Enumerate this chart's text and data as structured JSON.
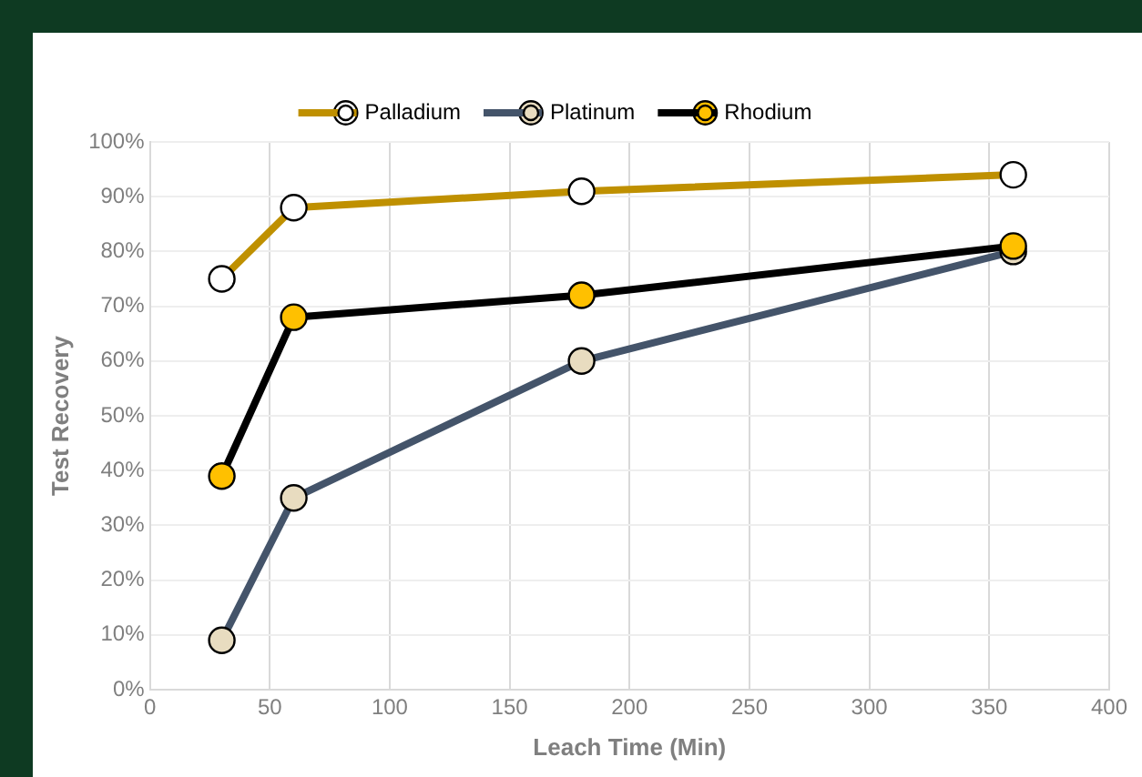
{
  "chart_data": {
    "type": "line",
    "xlabel": "Leach Time (Min)",
    "ylabel": "Test Recovery",
    "x": [
      30,
      60,
      180,
      360
    ],
    "series": [
      {
        "name": "Palladium",
        "color": "#bf9000",
        "values": [
          75,
          88,
          91,
          94
        ]
      },
      {
        "name": "Platinum",
        "color": "#44546a",
        "values": [
          9,
          35,
          60,
          80
        ]
      },
      {
        "name": "Rhodium",
        "color": "#000000",
        "values": [
          39,
          68,
          72,
          81
        ]
      }
    ],
    "xlim": [
      0,
      400
    ],
    "xticks": [
      0,
      50,
      100,
      150,
      200,
      250,
      300,
      350,
      400
    ],
    "ylim": [
      0,
      100
    ],
    "yticks": [
      {
        "value": 0,
        "label": "0%"
      },
      {
        "value": 10,
        "label": "10%"
      },
      {
        "value": 20,
        "label": "20%"
      },
      {
        "value": 30,
        "label": "30%"
      },
      {
        "value": 40,
        "label": "40%"
      },
      {
        "value": 50,
        "label": "50%"
      },
      {
        "value": 60,
        "label": "60%"
      },
      {
        "value": 70,
        "label": "70%"
      },
      {
        "value": 80,
        "label": "80%"
      },
      {
        "value": 90,
        "label": "90%"
      },
      {
        "value": 100,
        "label": "100%"
      }
    ],
    "grid": true,
    "legend": "top",
    "marker": "circle",
    "line_style": "solid"
  }
}
